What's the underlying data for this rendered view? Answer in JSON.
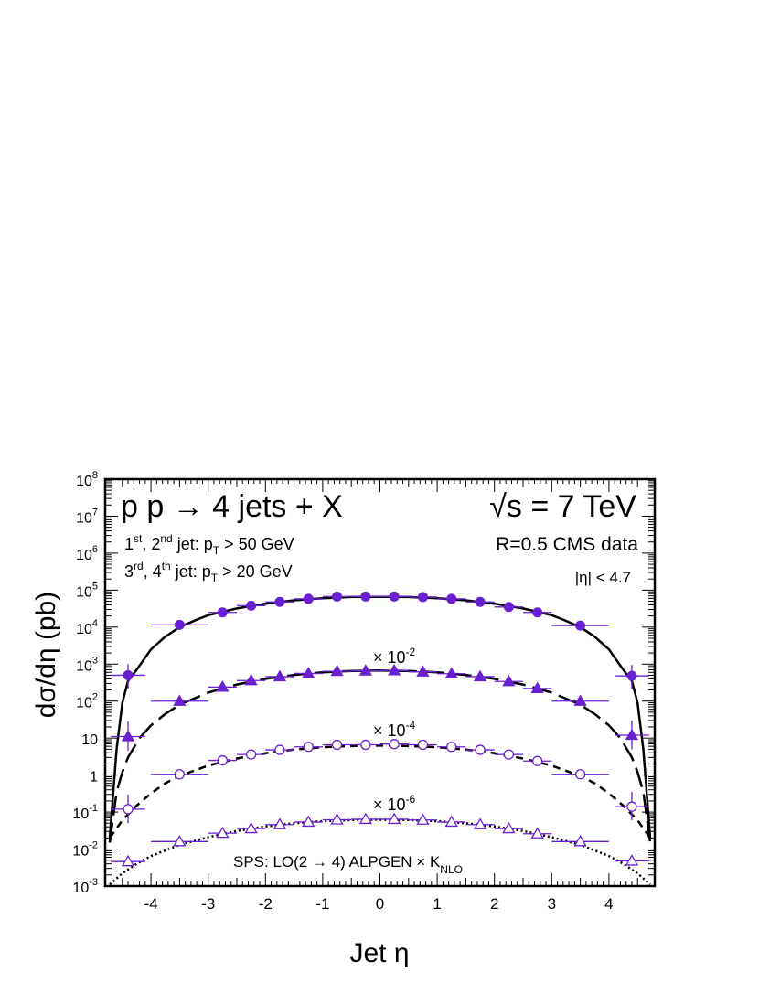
{
  "chart_data": {
    "type": "scatter",
    "title": "p p → 4 jets + X",
    "energy": "√s = 7 TeV",
    "annotations": {
      "cut1_prefix": "1",
      "cut1_sup1": "st",
      "cut1_mid": ", 2",
      "cut1_sup2": "nd",
      "cut1_jet": " jet: p",
      "cut1_sub": "T",
      "cut1_rest": " > 50 GeV",
      "cut2_prefix": "3",
      "cut2_sup1": "rd",
      "cut2_mid": ", 4",
      "cut2_sup2": "th",
      "cut2_jet": " jet: p",
      "cut2_sub": "T",
      "cut2_rest": " > 20 GeV",
      "radius": "R=0.5  CMS data",
      "eta_cut": "|η| < 4.7",
      "model_main": "SPS: LO(2 → 4) ALPGEN × K",
      "model_sub": "NLO",
      "scale_times": "× 10",
      "scale_m2": "-2",
      "scale_m4": "-4",
      "scale_m6": "-6"
    },
    "xlabel": "Jet   η",
    "ylabel": "dσ/dη     (pb)",
    "xlim": [
      -4.8,
      4.8
    ],
    "ylim": [
      0.001,
      100000000
    ],
    "y_log": true,
    "x_ticks": [
      "-4",
      "-3",
      "-2",
      "-1",
      "0",
      "1",
      "2",
      "3",
      "4"
    ],
    "y_ticks": [
      {
        "base": "10",
        "exp": "-3"
      },
      {
        "base": "10",
        "exp": "-2"
      },
      {
        "base": "10",
        "exp": "-1"
      },
      {
        "base": "1",
        "exp": ""
      },
      {
        "base": "10",
        "exp": ""
      },
      {
        "base": "10",
        "exp": "2"
      },
      {
        "base": "10",
        "exp": "3"
      },
      {
        "base": "10",
        "exp": "4"
      },
      {
        "base": "10",
        "exp": "5"
      },
      {
        "base": "10",
        "exp": "6"
      },
      {
        "base": "10",
        "exp": "7"
      },
      {
        "base": "10",
        "exp": "8"
      }
    ],
    "colors": {
      "data": "#6a1fd1",
      "theory": "#000000"
    },
    "series": [
      {
        "marker": "filled-circle",
        "line": "solid",
        "scale": 1,
        "points": [
          {
            "x": -4.4,
            "y": 500,
            "xerr": 0.3,
            "yup": 1000,
            "ylo": 220
          },
          {
            "x": -3.5,
            "y": 11500,
            "xerr": 0.5
          },
          {
            "x": -2.75,
            "y": 25000,
            "xerr": 0.25
          },
          {
            "x": -2.25,
            "y": 38000,
            "xerr": 0.25
          },
          {
            "x": -1.75,
            "y": 48000,
            "xerr": 0.25
          },
          {
            "x": -1.25,
            "y": 58000,
            "xerr": 0.25
          },
          {
            "x": -0.75,
            "y": 67000,
            "xerr": 0.25
          },
          {
            "x": -0.25,
            "y": 67000,
            "xerr": 0.25
          },
          {
            "x": 0.25,
            "y": 67000,
            "xerr": 0.25
          },
          {
            "x": 0.75,
            "y": 65000,
            "xerr": 0.25
          },
          {
            "x": 1.25,
            "y": 58000,
            "xerr": 0.25
          },
          {
            "x": 1.75,
            "y": 48000,
            "xerr": 0.25
          },
          {
            "x": 2.25,
            "y": 35000,
            "xerr": 0.25
          },
          {
            "x": 2.75,
            "y": 25000,
            "xerr": 0.25
          },
          {
            "x": 3.5,
            "y": 11000,
            "xerr": 0.5
          },
          {
            "x": 4.4,
            "y": 480,
            "xerr": 0.3,
            "yup": 950,
            "ylo": 210
          }
        ],
        "theory": [
          [
            -4.72,
            0.02
          ],
          [
            -4.6,
            5
          ],
          [
            -4.5,
            90
          ],
          [
            -4.4,
            350
          ],
          [
            -4.25,
            700
          ],
          [
            -4.0,
            2500
          ],
          [
            -3.75,
            5500
          ],
          [
            -3.5,
            10000
          ],
          [
            -3.2,
            16000
          ],
          [
            -3.0,
            21000
          ],
          [
            -2.5,
            32000
          ],
          [
            -2.0,
            43000
          ],
          [
            -1.5,
            53000
          ],
          [
            -1.0,
            60000
          ],
          [
            -0.5,
            65000
          ],
          [
            0.0,
            66000
          ],
          [
            0.5,
            65000
          ],
          [
            1.0,
            60000
          ],
          [
            1.5,
            53000
          ],
          [
            2.0,
            43000
          ],
          [
            2.5,
            32000
          ],
          [
            3.0,
            21000
          ],
          [
            3.2,
            16000
          ],
          [
            3.5,
            10000
          ],
          [
            3.75,
            5500
          ],
          [
            4.0,
            2500
          ],
          [
            4.25,
            700
          ],
          [
            4.4,
            350
          ],
          [
            4.5,
            90
          ],
          [
            4.6,
            5
          ],
          [
            4.72,
            0.02
          ]
        ]
      },
      {
        "marker": "filled-triangle",
        "line": "long-dash",
        "scale": 0.01,
        "points": [
          {
            "x": -4.4,
            "y": 11,
            "xerr": 0.3,
            "yup": 28,
            "ylo": 4.5
          },
          {
            "x": -3.5,
            "y": 100,
            "xerr": 0.5
          },
          {
            "x": -2.75,
            "y": 240,
            "xerr": 0.25
          },
          {
            "x": -2.25,
            "y": 360,
            "xerr": 0.25
          },
          {
            "x": -1.75,
            "y": 460,
            "xerr": 0.25
          },
          {
            "x": -1.25,
            "y": 560,
            "xerr": 0.25
          },
          {
            "x": -0.75,
            "y": 640,
            "xerr": 0.25
          },
          {
            "x": -0.25,
            "y": 660,
            "xerr": 0.25
          },
          {
            "x": 0.25,
            "y": 670,
            "xerr": 0.25
          },
          {
            "x": 0.75,
            "y": 620,
            "xerr": 0.25
          },
          {
            "x": 1.25,
            "y": 550,
            "xerr": 0.25
          },
          {
            "x": 1.75,
            "y": 460,
            "xerr": 0.25
          },
          {
            "x": 2.25,
            "y": 340,
            "xerr": 0.25
          },
          {
            "x": 2.75,
            "y": 220,
            "xerr": 0.25
          },
          {
            "x": 3.5,
            "y": 100,
            "xerr": 0.5
          },
          {
            "x": 4.4,
            "y": 12,
            "xerr": 0.3,
            "yup": 30,
            "ylo": 5
          }
        ],
        "theory": [
          [
            -4.72,
            0.015
          ],
          [
            -4.6,
            0.35
          ],
          [
            -4.5,
            1.2
          ],
          [
            -4.4,
            3
          ],
          [
            -4.2,
            10
          ],
          [
            -4.0,
            22
          ],
          [
            -3.75,
            45
          ],
          [
            -3.5,
            80
          ],
          [
            -3.0,
            170
          ],
          [
            -2.5,
            280
          ],
          [
            -2.0,
            400
          ],
          [
            -1.5,
            510
          ],
          [
            -1.0,
            600
          ],
          [
            -0.5,
            650
          ],
          [
            0.0,
            670
          ],
          [
            0.5,
            650
          ],
          [
            1.0,
            600
          ],
          [
            1.5,
            510
          ],
          [
            2.0,
            400
          ],
          [
            2.5,
            280
          ],
          [
            3.0,
            170
          ],
          [
            3.5,
            80
          ],
          [
            3.75,
            45
          ],
          [
            4.0,
            22
          ],
          [
            4.2,
            10
          ],
          [
            4.4,
            3
          ],
          [
            4.5,
            1.2
          ],
          [
            4.6,
            0.35
          ],
          [
            4.72,
            0.015
          ]
        ]
      },
      {
        "marker": "open-circle",
        "line": "short-dash",
        "scale": 0.0001,
        "points": [
          {
            "x": -4.4,
            "y": 0.12,
            "xerr": 0.3,
            "yup": 0.3,
            "ylo": 0.05
          },
          {
            "x": -3.5,
            "y": 1.05,
            "xerr": 0.5
          },
          {
            "x": -2.75,
            "y": 2.5,
            "xerr": 0.25
          },
          {
            "x": -2.25,
            "y": 3.6,
            "xerr": 0.25
          },
          {
            "x": -1.75,
            "y": 4.8,
            "xerr": 0.25
          },
          {
            "x": -1.25,
            "y": 5.8,
            "xerr": 0.25
          },
          {
            "x": -0.75,
            "y": 6.6,
            "xerr": 0.25
          },
          {
            "x": -0.25,
            "y": 6.6,
            "xerr": 0.25
          },
          {
            "x": 0.25,
            "y": 6.9,
            "xerr": 0.25
          },
          {
            "x": 0.75,
            "y": 6.6,
            "xerr": 0.25
          },
          {
            "x": 1.25,
            "y": 5.8,
            "xerr": 0.25
          },
          {
            "x": 1.75,
            "y": 4.8,
            "xerr": 0.25
          },
          {
            "x": 2.25,
            "y": 3.6,
            "xerr": 0.25
          },
          {
            "x": 2.75,
            "y": 2.4,
            "xerr": 0.25
          },
          {
            "x": 3.5,
            "y": 1.05,
            "xerr": 0.5
          },
          {
            "x": 4.4,
            "y": 0.14,
            "xerr": 0.3,
            "yup": 0.35,
            "ylo": 0.06
          }
        ],
        "theory": [
          [
            -4.72,
            0.02
          ],
          [
            -4.5,
            0.06
          ],
          [
            -4.25,
            0.15
          ],
          [
            -4.0,
            0.32
          ],
          [
            -3.75,
            0.6
          ],
          [
            -3.5,
            0.95
          ],
          [
            -3.0,
            1.8
          ],
          [
            -2.5,
            2.8
          ],
          [
            -2.0,
            3.9
          ],
          [
            -1.5,
            4.9
          ],
          [
            -1.0,
            5.7
          ],
          [
            -0.5,
            6.1
          ],
          [
            0.0,
            6.3
          ],
          [
            0.5,
            6.1
          ],
          [
            1.0,
            5.7
          ],
          [
            1.5,
            4.9
          ],
          [
            2.0,
            3.9
          ],
          [
            2.5,
            2.8
          ],
          [
            3.0,
            1.8
          ],
          [
            3.5,
            0.95
          ],
          [
            3.75,
            0.6
          ],
          [
            4.0,
            0.32
          ],
          [
            4.25,
            0.15
          ],
          [
            4.5,
            0.06
          ],
          [
            4.72,
            0.02
          ]
        ]
      },
      {
        "marker": "open-triangle",
        "line": "dotted",
        "scale": 1e-06,
        "points": [
          {
            "x": -4.4,
            "y": 0.0046,
            "xerr": 0.3
          },
          {
            "x": -3.5,
            "y": 0.016,
            "xerr": 0.5
          },
          {
            "x": -2.75,
            "y": 0.027,
            "xerr": 0.25
          },
          {
            "x": -2.25,
            "y": 0.036,
            "xerr": 0.25
          },
          {
            "x": -1.75,
            "y": 0.046,
            "xerr": 0.25
          },
          {
            "x": -1.25,
            "y": 0.054,
            "xerr": 0.25
          },
          {
            "x": -0.75,
            "y": 0.062,
            "xerr": 0.25
          },
          {
            "x": -0.25,
            "y": 0.064,
            "xerr": 0.25
          },
          {
            "x": 0.25,
            "y": 0.064,
            "xerr": 0.25
          },
          {
            "x": 0.75,
            "y": 0.061,
            "xerr": 0.25
          },
          {
            "x": 1.25,
            "y": 0.054,
            "xerr": 0.25
          },
          {
            "x": 1.75,
            "y": 0.046,
            "xerr": 0.25
          },
          {
            "x": 2.25,
            "y": 0.036,
            "xerr": 0.25
          },
          {
            "x": 2.75,
            "y": 0.026,
            "xerr": 0.25
          },
          {
            "x": 3.5,
            "y": 0.016,
            "xerr": 0.5
          },
          {
            "x": 4.4,
            "y": 0.0048,
            "xerr": 0.3
          }
        ],
        "theory": [
          [
            -4.72,
            0.0011
          ],
          [
            -4.5,
            0.0022
          ],
          [
            -4.25,
            0.004
          ],
          [
            -4.0,
            0.0065
          ],
          [
            -3.5,
            0.013
          ],
          [
            -3.0,
            0.021
          ],
          [
            -2.5,
            0.031
          ],
          [
            -2.0,
            0.041
          ],
          [
            -1.5,
            0.05
          ],
          [
            -1.0,
            0.057
          ],
          [
            -0.5,
            0.061
          ],
          [
            0.0,
            0.062
          ],
          [
            0.5,
            0.061
          ],
          [
            1.0,
            0.057
          ],
          [
            1.5,
            0.05
          ],
          [
            2.0,
            0.041
          ],
          [
            2.5,
            0.031
          ],
          [
            3.0,
            0.021
          ],
          [
            3.5,
            0.013
          ],
          [
            4.0,
            0.0065
          ],
          [
            4.25,
            0.004
          ],
          [
            4.5,
            0.0022
          ],
          [
            4.72,
            0.0011
          ]
        ]
      }
    ]
  }
}
